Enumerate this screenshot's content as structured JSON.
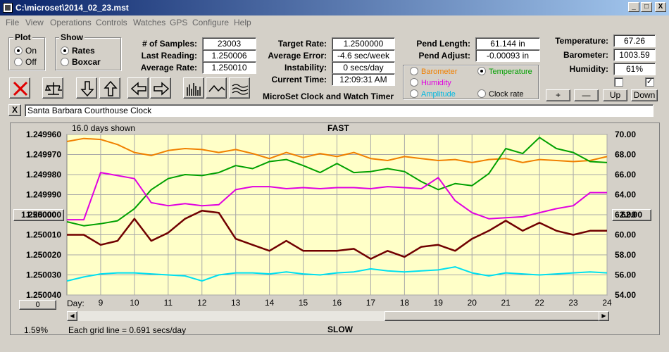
{
  "window": {
    "title": "C:\\microset\\2014_02_23.mst",
    "min": "_",
    "max": "□",
    "close": "X"
  },
  "menu": [
    "File",
    "View",
    "Operations",
    "Controls",
    "Watches",
    "GPS",
    "Configure",
    "Help"
  ],
  "plot_group": {
    "title": "Plot",
    "on": "On",
    "off": "Off",
    "selected": "On"
  },
  "show_group": {
    "title": "Show",
    "rates": "Rates",
    "boxcar": "Boxcar",
    "selected": "Rates"
  },
  "stats": {
    "samples_label": "# of Samples:",
    "samples": "23003",
    "last_label": "Last Reading:",
    "last": "1.250006",
    "avg_label": "Average Rate:",
    "avg": "1.250010"
  },
  "rates": {
    "target_label": "Target Rate:",
    "target": "1.2500000",
    "err_label": "Average Error:",
    "err": "-4.6 sec/week",
    "inst_label": "Instability:",
    "inst": "0 secs/day",
    "time_label": "Current Time:",
    "time": "12:09:31 AM"
  },
  "app_name": "MicroSet Clock and Watch Timer",
  "pendulum": {
    "len_label": "Pend Length:",
    "len": "61.144 in",
    "adj_label": "Pend Adjust:",
    "adj": "-0.00093 in"
  },
  "traces": {
    "barometer": "Barometer",
    "temperature": "Temperature",
    "humidity": "Humidity",
    "amplitude": "Amplitude",
    "clockrate": "Clock rate",
    "selected": "Temperature"
  },
  "env": {
    "temp_label": "Temperature:",
    "temp": "67.26",
    "baro_label": "Barometer:",
    "baro": "1003.59",
    "hum_label": "Humidity:",
    "hum": "61%",
    "check2": "✓"
  },
  "nav": {
    "plus": "+",
    "minus": "—",
    "up": "Up",
    "down": "Down"
  },
  "clock_name": "Santa Barbara Courthouse Clock",
  "close_x": "X",
  "plot": {
    "days_shown": "16.0 days shown",
    "fast": "FAST",
    "slow": "SLOW",
    "left_value": "1.250000",
    "right_value": "62.00",
    "zero": "0",
    "day_label": "Day:",
    "grid_note": "Each grid line = 0.691 secs/day",
    "percent": "1.59%"
  },
  "colors": {
    "barometer": "#f08000",
    "temperature": "#00a000",
    "humidity": "#e000e0",
    "amplitude": "#00e0f0",
    "rate": "#700000",
    "plot_bg": "#ffffc8"
  },
  "chart_data": {
    "type": "line",
    "title": "FAST",
    "xlabel": "Day:",
    "x_ticks": [
      9,
      10,
      11,
      12,
      13,
      14,
      15,
      16,
      17,
      18,
      19,
      20,
      21,
      22,
      23,
      24
    ],
    "xlim": [
      8,
      24
    ],
    "y_left_ticks": [
      "1.249960",
      "1.249970",
      "1.249980",
      "1.249990",
      "1.250000",
      "1.250010",
      "1.250020",
      "1.250030",
      "1.250040"
    ],
    "y_left_lim": [
      1.24996,
      1.25004
    ],
    "y_right_ticks": [
      "70.00",
      "68.00",
      "66.00",
      "64.00",
      "62.00",
      "60.00",
      "58.00",
      "56.00",
      "54.00"
    ],
    "y_right_lim": [
      54,
      70
    ],
    "series": [
      {
        "name": "Barometer",
        "axis": "right",
        "x": [
          8,
          8.5,
          9,
          9.5,
          10,
          10.5,
          11,
          11.5,
          12,
          12.5,
          13,
          13.5,
          14,
          14.5,
          15,
          15.5,
          16,
          16.5,
          17,
          17.5,
          18,
          18.5,
          19,
          19.5,
          20,
          20.5,
          21,
          21.5,
          22,
          22.5,
          23,
          23.5,
          24
        ],
        "y": [
          69.3,
          69.6,
          69.5,
          69.0,
          68.2,
          67.9,
          68.4,
          68.6,
          68.5,
          68.2,
          68.5,
          68.1,
          67.6,
          68.2,
          67.7,
          68.1,
          67.8,
          68.2,
          67.6,
          67.4,
          67.8,
          67.6,
          67.4,
          67.5,
          67.2,
          67.5,
          67.6,
          67.2,
          67.5,
          67.4,
          67.3,
          67.4,
          67.8
        ]
      },
      {
        "name": "Temperature",
        "axis": "right",
        "x": [
          8,
          8.5,
          9,
          9.5,
          10,
          10.5,
          11,
          11.5,
          12,
          12.5,
          13,
          13.5,
          14,
          14.5,
          15,
          15.5,
          16,
          16.5,
          17,
          17.5,
          18,
          18.5,
          19,
          19.5,
          20,
          20.5,
          21,
          21.5,
          22,
          22.5,
          23,
          23.5,
          24
        ],
        "y": [
          61.3,
          60.9,
          61.1,
          61.4,
          62.6,
          64.5,
          65.6,
          66.0,
          65.9,
          66.2,
          66.9,
          66.6,
          67.3,
          67.5,
          66.9,
          66.2,
          67.1,
          66.2,
          66.3,
          66.6,
          66.3,
          65.3,
          64.5,
          65.1,
          64.9,
          66.1,
          68.6,
          68.1,
          69.7,
          68.6,
          68.2,
          67.3,
          67.2
        ]
      },
      {
        "name": "Humidity",
        "axis": "right",
        "x": [
          8,
          8.5,
          9,
          9.5,
          10,
          10.5,
          11,
          11.5,
          12,
          12.5,
          13,
          13.5,
          14,
          14.5,
          15,
          15.5,
          16,
          16.5,
          17,
          17.5,
          18,
          18.5,
          19,
          19.5,
          20,
          20.5,
          21,
          21.5,
          22,
          22.5,
          23,
          23.5,
          24
        ],
        "y": [
          61.5,
          61.5,
          66.2,
          65.9,
          65.6,
          63.2,
          62.9,
          63.1,
          62.9,
          63.0,
          64.5,
          64.8,
          64.8,
          64.6,
          64.7,
          64.6,
          64.7,
          64.7,
          64.6,
          64.8,
          64.7,
          64.6,
          65.7,
          63.4,
          62.2,
          61.6,
          61.7,
          61.8,
          62.2,
          62.6,
          62.9,
          64.2,
          64.2
        ]
      },
      {
        "name": "Amplitude",
        "axis": "right",
        "x": [
          8,
          8.5,
          9,
          9.5,
          10,
          10.5,
          11,
          11.5,
          12,
          12.5,
          13,
          13.5,
          14,
          14.5,
          15,
          15.5,
          16,
          16.5,
          17,
          17.5,
          18,
          18.5,
          19,
          19.5,
          20,
          20.5,
          21,
          21.5,
          22,
          22.5,
          23,
          23.5,
          24
        ],
        "y": [
          55.4,
          55.8,
          56.1,
          56.2,
          56.2,
          56.1,
          56.0,
          55.9,
          55.4,
          56.0,
          56.2,
          56.2,
          56.1,
          56.3,
          56.1,
          56.0,
          56.2,
          56.3,
          56.6,
          56.4,
          56.3,
          56.4,
          56.5,
          56.8,
          56.2,
          55.9,
          56.2,
          56.1,
          56.0,
          56.1,
          56.2,
          56.3,
          56.2
        ]
      },
      {
        "name": "Clock rate",
        "axis": "left",
        "x": [
          8,
          8.5,
          9,
          9.5,
          10,
          10.5,
          11,
          11.5,
          12,
          12.5,
          13,
          13.5,
          14,
          14.5,
          15,
          15.5,
          16,
          16.5,
          17,
          17.5,
          18,
          18.5,
          19,
          19.5,
          20,
          20.5,
          21,
          21.5,
          22,
          22.5,
          23,
          23.5,
          24
        ],
        "y": [
          1.25001,
          1.25001,
          1.250015,
          1.250013,
          1.250002,
          1.250013,
          1.250009,
          1.250002,
          1.249998,
          1.249999,
          1.250012,
          1.250015,
          1.250018,
          1.250013,
          1.250018,
          1.250018,
          1.250018,
          1.250017,
          1.250022,
          1.250018,
          1.250021,
          1.250016,
          1.250015,
          1.250018,
          1.250012,
          1.250008,
          1.250003,
          1.250008,
          1.250004,
          1.250008,
          1.25001,
          1.250008,
          1.250008
        ]
      }
    ]
  }
}
